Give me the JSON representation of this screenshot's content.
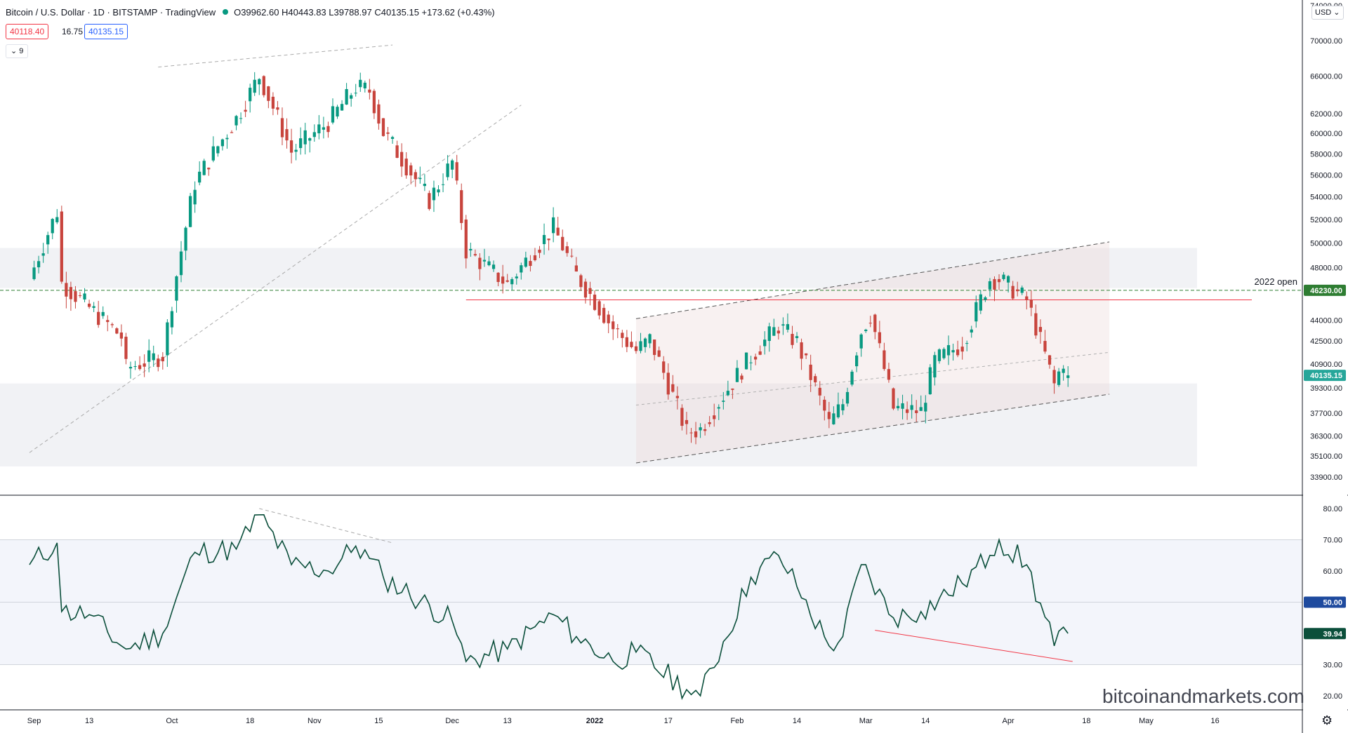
{
  "header": {
    "symbol": "Bitcoin / U.S. Dollar · 1D · BITSTAMP · TradingView",
    "ohlc": "O39962.60 H40443.83 L39788.97 C40135.15 +173.62 (+0.43%)",
    "bid": "40118.40",
    "spread": "16.75",
    "ask": "40135.15",
    "indicator_toggle": "⌄ 9"
  },
  "currency": "USD ⌄",
  "watermark": "bitcoinandmarkets.com",
  "colors": {
    "up": "#089981",
    "down": "#c8443d",
    "rsi_line": "#0b4f3b",
    "year_open": "#2e7d32",
    "resistance": "#f23645",
    "band": "#eceef2"
  },
  "chart_data": [
    {
      "type": "candlestick",
      "title": "Bitcoin / U.S. Dollar · 1D · BITSTAMP",
      "x_tick_labels": [
        "Sep",
        "13",
        "Oct",
        "18",
        "Nov",
        "15",
        "Dec",
        "13",
        "2022",
        "17",
        "Feb",
        "14",
        "Mar",
        "14",
        "Apr",
        "18",
        "May",
        "16"
      ],
      "y_tick_labels": [
        "70000.00",
        "66000.00",
        "62000.00",
        "60000.00",
        "58000.00",
        "56000.00",
        "54000.00",
        "52000.00",
        "50000.00",
        "48000.00",
        "44000.00",
        "42500.00",
        "40900.00",
        "39300.00",
        "37700.00",
        "36300.00",
        "35100.00",
        "33900.00"
      ],
      "y_scale": "log",
      "ylim": [
        32800,
        75000
      ],
      "xlim": [
        "2021-08-31",
        "2022-05-24"
      ],
      "price_labels": [
        {
          "label": "46230.00",
          "value": 46230,
          "color": "#2e7d32"
        },
        {
          "label": "40135.15",
          "value": 40135.15,
          "color": "#26a69a"
        }
      ],
      "annotations": [
        {
          "text": "2022 open",
          "value": 46230
        }
      ],
      "horizontal_lines": [
        {
          "name": "2022 open",
          "value": 46230,
          "style": "dashed",
          "color": "#2e7d32"
        },
        {
          "value": 45500,
          "style": "solid",
          "color": "#f23645",
          "from": "2021-12-04",
          "to": "2022-05-24"
        }
      ],
      "zones": [
        {
          "from_price": 46400,
          "to_price": 49600
        },
        {
          "from_price": 34500,
          "to_price": 39600
        }
      ],
      "channel": {
        "upper": [
          [
            "2022-01-10",
            44100
          ],
          [
            "2022-04-23",
            50100
          ]
        ],
        "lower": [
          [
            "2022-01-10",
            34700
          ],
          [
            "2022-04-23",
            38900
          ]
        ],
        "mid": [
          [
            "2022-01-10",
            38200
          ],
          [
            "2022-04-23",
            41700
          ]
        ]
      },
      "trendlines": [
        {
          "points": [
            [
              "2021-09-28",
              67000
            ],
            [
              "2021-11-18",
              69500
            ]
          ],
          "style": "dashed"
        },
        {
          "points": [
            [
              "2021-08-31",
              35300
            ],
            [
              "2021-12-16",
              62900
            ]
          ],
          "style": "dashed"
        }
      ],
      "close_points": [
        [
          "2021-08-31",
          47100
        ],
        [
          "2021-09-06",
          52700
        ],
        [
          "2021-09-07",
          46800
        ],
        [
          "2021-09-13",
          44900
        ],
        [
          "2021-09-20",
          42800
        ],
        [
          "2021-09-21",
          40600
        ],
        [
          "2021-09-29",
          41500
        ],
        [
          "2021-10-06",
          55300
        ],
        [
          "2021-10-15",
          61500
        ],
        [
          "2021-10-20",
          66000
        ],
        [
          "2021-10-27",
          58200
        ],
        [
          "2021-11-04",
          61100
        ],
        [
          "2021-11-10",
          64800
        ],
        [
          "2021-11-13",
          64400
        ],
        [
          "2021-11-16",
          60100
        ],
        [
          "2021-11-26",
          53700
        ],
        [
          "2021-12-01",
          57200
        ],
        [
          "2021-12-04",
          49400
        ],
        [
          "2021-12-13",
          46700
        ],
        [
          "2021-12-23",
          51300
        ],
        [
          "2021-12-28",
          47400
        ],
        [
          "2022-01-05",
          43400
        ],
        [
          "2022-01-10",
          41800
        ],
        [
          "2022-01-13",
          42600
        ],
        [
          "2022-01-21",
          36500
        ],
        [
          "2022-01-24",
          36700
        ],
        [
          "2022-02-04",
          41400
        ],
        [
          "2022-02-10",
          43600
        ],
        [
          "2022-02-14",
          42400
        ],
        [
          "2022-02-21",
          37000
        ],
        [
          "2022-02-24",
          38300
        ],
        [
          "2022-02-28",
          43200
        ],
        [
          "2022-03-02",
          44400
        ],
        [
          "2022-03-07",
          38000
        ],
        [
          "2022-03-13",
          37800
        ],
        [
          "2022-03-16",
          41100
        ],
        [
          "2022-03-22",
          42300
        ],
        [
          "2022-03-28",
          47100
        ],
        [
          "2022-03-30",
          47100
        ],
        [
          "2022-04-05",
          45500
        ],
        [
          "2022-04-11",
          39500
        ],
        [
          "2022-04-13",
          41100
        ],
        [
          "2022-04-14",
          40100
        ]
      ],
      "last": {
        "open": 39962.6,
        "high": 40443.83,
        "low": 39788.97,
        "close": 40135.15,
        "change": 173.62,
        "change_pct": 0.43
      }
    },
    {
      "type": "line",
      "title": "RSI",
      "y_tick_labels": [
        "80.00",
        "70.00",
        "60.00",
        "50.00",
        "30.00",
        "20.00"
      ],
      "ylim": [
        17,
        84
      ],
      "band": [
        30,
        70
      ],
      "midline": 50,
      "price_labels": [
        {
          "label": "50.00",
          "value": 50,
          "color": "#1e4a9e"
        },
        {
          "label": "39.94",
          "value": 39.94,
          "color": "#0b4f3b"
        }
      ],
      "series": [
        {
          "values": [
            [
              "2021-08-31",
              62
            ],
            [
              "2021-09-06",
              69
            ],
            [
              "2021-09-07",
              47
            ],
            [
              "2021-09-13",
              46
            ],
            [
              "2021-09-20",
              36
            ],
            [
              "2021-09-21",
              35
            ],
            [
              "2021-09-29",
              40
            ],
            [
              "2021-10-06",
              66
            ],
            [
              "2021-10-15",
              67
            ],
            [
              "2021-10-20",
              78
            ],
            [
              "2021-10-27",
              62
            ],
            [
              "2021-11-04",
              60
            ],
            [
              "2021-11-10",
              68
            ],
            [
              "2021-11-13",
              64
            ],
            [
              "2021-11-16",
              58
            ],
            [
              "2021-12-01",
              44
            ],
            [
              "2021-12-04",
              31
            ],
            [
              "2021-12-13",
              35
            ],
            [
              "2021-12-23",
              46
            ],
            [
              "2021-12-28",
              39
            ],
            [
              "2022-01-05",
              31
            ],
            [
              "2022-01-10",
              34
            ],
            [
              "2022-01-21",
              22
            ],
            [
              "2022-01-24",
              20
            ],
            [
              "2022-02-04",
              58
            ],
            [
              "2022-02-10",
              65
            ],
            [
              "2022-02-14",
              55
            ],
            [
              "2022-02-21",
              36
            ],
            [
              "2022-02-24",
              39
            ],
            [
              "2022-02-28",
              62
            ],
            [
              "2022-03-07",
              45
            ],
            [
              "2022-03-13",
              47
            ],
            [
              "2022-03-22",
              56
            ],
            [
              "2022-03-28",
              65
            ],
            [
              "2022-03-30",
              70
            ],
            [
              "2022-04-05",
              62
            ],
            [
              "2022-04-11",
              36
            ],
            [
              "2022-04-13",
              42
            ],
            [
              "2022-04-14",
              40
            ]
          ]
        }
      ],
      "trendlines": [
        {
          "points": [
            [
              "2022-03-03",
              41
            ],
            [
              "2022-04-15",
              31
            ]
          ],
          "color": "#f23645"
        },
        {
          "points": [
            [
              "2021-10-20",
              80
            ],
            [
              "2021-11-18",
              69
            ]
          ],
          "style": "dashed"
        }
      ]
    }
  ]
}
